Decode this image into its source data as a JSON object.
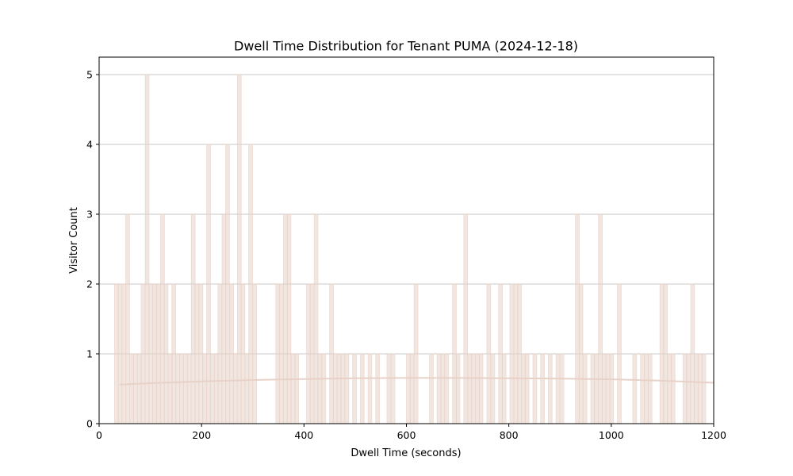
{
  "chart_data": {
    "type": "bar",
    "title": "Dwell Time Distribution for Tenant PUMA (2024-12-18)",
    "xlabel": "Dwell Time (seconds)",
    "ylabel": "Visitor Count",
    "xlim": [
      0,
      1200
    ],
    "ylim": [
      0,
      5.25
    ],
    "xticks": [
      0,
      200,
      400,
      600,
      800,
      1000,
      1200
    ],
    "yticks": [
      0,
      1,
      2,
      3,
      4,
      5
    ],
    "grid": "horizontal",
    "bin_width": 7.5,
    "colors": {
      "bar": "#e8d2c8",
      "trend": "#e8d2c8",
      "grid": "#c8c8c8"
    },
    "series": [
      {
        "values": [
          [
            30,
            2
          ],
          [
            37,
            2
          ],
          [
            45,
            2
          ],
          [
            52,
            3
          ],
          [
            60,
            1
          ],
          [
            67,
            1
          ],
          [
            75,
            1
          ],
          [
            82,
            2
          ],
          [
            90,
            5
          ],
          [
            97,
            2
          ],
          [
            105,
            2
          ],
          [
            112,
            2
          ],
          [
            120,
            3
          ],
          [
            127,
            2
          ],
          [
            135,
            1
          ],
          [
            142,
            2
          ],
          [
            150,
            1
          ],
          [
            157,
            1
          ],
          [
            165,
            1
          ],
          [
            172,
            1
          ],
          [
            180,
            3
          ],
          [
            187,
            2
          ],
          [
            195,
            2
          ],
          [
            202,
            1
          ],
          [
            210,
            4
          ],
          [
            217,
            1
          ],
          [
            225,
            1
          ],
          [
            232,
            2
          ],
          [
            240,
            3
          ],
          [
            247,
            4
          ],
          [
            255,
            2
          ],
          [
            262,
            1
          ],
          [
            270,
            5
          ],
          [
            277,
            2
          ],
          [
            285,
            1
          ],
          [
            292,
            4
          ],
          [
            300,
            2
          ],
          [
            345,
            2
          ],
          [
            352,
            2
          ],
          [
            360,
            3
          ],
          [
            367,
            3
          ],
          [
            375,
            1
          ],
          [
            382,
            1
          ],
          [
            405,
            2
          ],
          [
            412,
            2
          ],
          [
            420,
            3
          ],
          [
            427,
            1
          ],
          [
            435,
            1
          ],
          [
            450,
            2
          ],
          [
            457,
            1
          ],
          [
            465,
            1
          ],
          [
            472,
            1
          ],
          [
            480,
            1
          ],
          [
            495,
            1
          ],
          [
            510,
            1
          ],
          [
            525,
            1
          ],
          [
            540,
            1
          ],
          [
            562,
            1
          ],
          [
            570,
            1
          ],
          [
            600,
            1
          ],
          [
            607,
            1
          ],
          [
            615,
            2
          ],
          [
            645,
            1
          ],
          [
            660,
            1
          ],
          [
            667,
            1
          ],
          [
            675,
            1
          ],
          [
            690,
            2
          ],
          [
            697,
            1
          ],
          [
            712,
            3
          ],
          [
            720,
            1
          ],
          [
            727,
            1
          ],
          [
            735,
            1
          ],
          [
            742,
            1
          ],
          [
            757,
            2
          ],
          [
            765,
            1
          ],
          [
            780,
            2
          ],
          [
            787,
            1
          ],
          [
            802,
            2
          ],
          [
            810,
            2
          ],
          [
            817,
            2
          ],
          [
            825,
            1
          ],
          [
            832,
            1
          ],
          [
            847,
            1
          ],
          [
            862,
            1
          ],
          [
            877,
            1
          ],
          [
            892,
            1
          ],
          [
            900,
            1
          ],
          [
            930,
            3
          ],
          [
            937,
            2
          ],
          [
            945,
            1
          ],
          [
            960,
            1
          ],
          [
            967,
            1
          ],
          [
            975,
            3
          ],
          [
            982,
            1
          ],
          [
            990,
            1
          ],
          [
            997,
            1
          ],
          [
            1012,
            2
          ],
          [
            1042,
            1
          ],
          [
            1057,
            1
          ],
          [
            1065,
            1
          ],
          [
            1072,
            1
          ],
          [
            1095,
            2
          ],
          [
            1102,
            2
          ],
          [
            1110,
            1
          ],
          [
            1117,
            1
          ],
          [
            1140,
            1
          ],
          [
            1147,
            1
          ],
          [
            1155,
            2
          ],
          [
            1162,
            1
          ],
          [
            1170,
            1
          ],
          [
            1177,
            1
          ]
        ]
      }
    ],
    "trend_line": [
      [
        40,
        0.56
      ],
      [
        100,
        0.58
      ],
      [
        200,
        0.605
      ],
      [
        300,
        0.625
      ],
      [
        400,
        0.64
      ],
      [
        500,
        0.65
      ],
      [
        600,
        0.655
      ],
      [
        700,
        0.655
      ],
      [
        800,
        0.65
      ],
      [
        900,
        0.645
      ],
      [
        1000,
        0.635
      ],
      [
        1100,
        0.615
      ],
      [
        1200,
        0.585
      ]
    ]
  }
}
